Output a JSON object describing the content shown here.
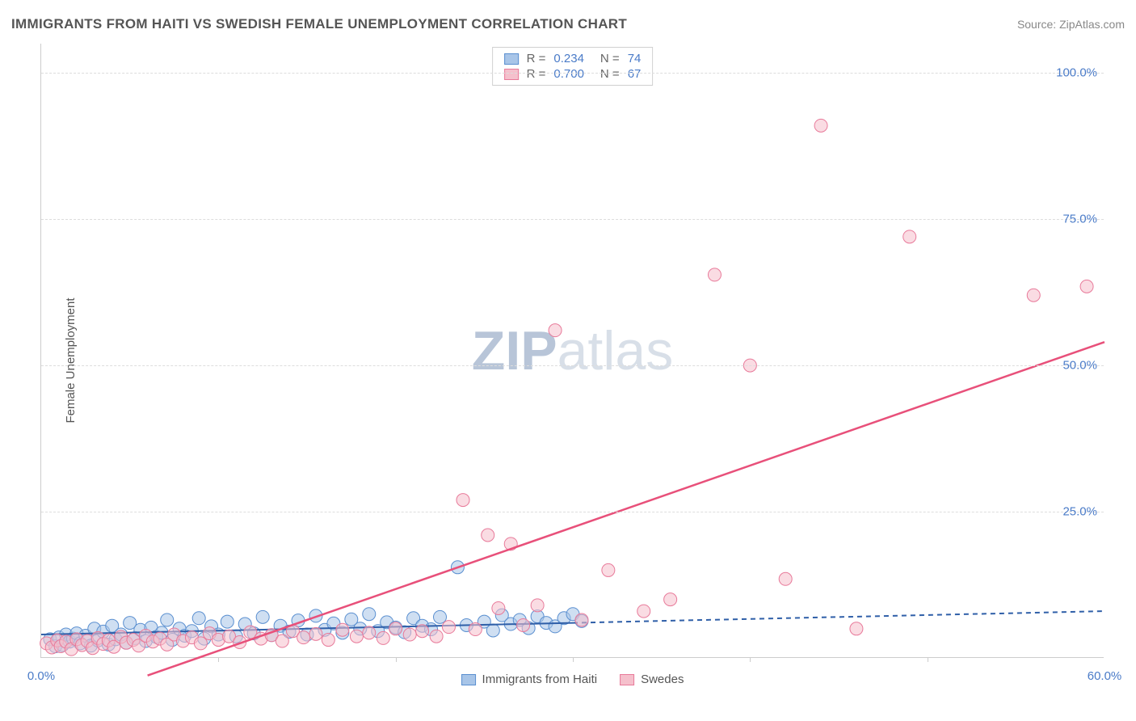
{
  "title": "IMMIGRANTS FROM HAITI VS SWEDISH FEMALE UNEMPLOYMENT CORRELATION CHART",
  "source": "Source: ZipAtlas.com",
  "ylabel": "Female Unemployment",
  "watermark_zip": "ZIP",
  "watermark_rest": "atlas",
  "chart": {
    "type": "scatter",
    "xlim": [
      0,
      60
    ],
    "ylim": [
      0,
      105
    ],
    "xtick_major": [
      0,
      60
    ],
    "xtick_minor": [
      10,
      20,
      30,
      40,
      50
    ],
    "xtick_labels": [
      "0.0%",
      "60.0%"
    ],
    "ytick_major": [
      25,
      50,
      75,
      100
    ],
    "ytick_labels": [
      "25.0%",
      "50.0%",
      "75.0%",
      "100.0%"
    ],
    "background_color": "#ffffff",
    "grid_color": "#dddddd",
    "axis_color": "#cccccc",
    "marker_radius": 8,
    "marker_opacity": 0.55,
    "series": [
      {
        "name": "Immigrants from Haiti",
        "color_fill": "#a8c5e8",
        "color_stroke": "#5a8fd0",
        "R": "0.234",
        "N": "74",
        "trend": {
          "x1": 0,
          "y1": 4.0,
          "x2": 30,
          "y2": 6.0,
          "x1_ext": 30,
          "x2_ext": 60,
          "y2_ext": 8.0,
          "dash_ext": true,
          "color": "#2f5fa8",
          "width": 2
        },
        "points": [
          [
            0.5,
            3.2
          ],
          [
            0.8,
            2.0
          ],
          [
            1.0,
            3.5
          ],
          [
            1.2,
            2.2
          ],
          [
            1.4,
            4.0
          ],
          [
            1.6,
            2.8
          ],
          [
            1.8,
            3.3
          ],
          [
            2.0,
            4.2
          ],
          [
            2.2,
            2.5
          ],
          [
            2.5,
            3.8
          ],
          [
            2.8,
            2.1
          ],
          [
            3.0,
            5.0
          ],
          [
            3.2,
            3.0
          ],
          [
            3.5,
            4.5
          ],
          [
            3.8,
            2.3
          ],
          [
            4.0,
            5.5
          ],
          [
            4.2,
            3.2
          ],
          [
            4.5,
            4.0
          ],
          [
            4.8,
            2.6
          ],
          [
            5.0,
            6.0
          ],
          [
            5.3,
            3.4
          ],
          [
            5.6,
            4.8
          ],
          [
            5.9,
            2.9
          ],
          [
            6.2,
            5.2
          ],
          [
            6.5,
            3.6
          ],
          [
            6.8,
            4.3
          ],
          [
            7.1,
            6.5
          ],
          [
            7.4,
            3.1
          ],
          [
            7.8,
            5.0
          ],
          [
            8.1,
            3.8
          ],
          [
            8.5,
            4.6
          ],
          [
            8.9,
            6.8
          ],
          [
            9.2,
            3.3
          ],
          [
            9.6,
            5.4
          ],
          [
            10.0,
            4.0
          ],
          [
            10.5,
            6.2
          ],
          [
            11.0,
            3.7
          ],
          [
            11.5,
            5.8
          ],
          [
            12.0,
            4.2
          ],
          [
            12.5,
            7.0
          ],
          [
            13.0,
            3.9
          ],
          [
            13.5,
            5.5
          ],
          [
            14.0,
            4.5
          ],
          [
            14.5,
            6.4
          ],
          [
            15.0,
            4.0
          ],
          [
            15.5,
            7.2
          ],
          [
            16.0,
            4.8
          ],
          [
            16.5,
            5.9
          ],
          [
            17.0,
            4.3
          ],
          [
            17.5,
            6.6
          ],
          [
            18.0,
            5.0
          ],
          [
            18.5,
            7.5
          ],
          [
            19.0,
            4.6
          ],
          [
            19.5,
            6.1
          ],
          [
            20.0,
            5.2
          ],
          [
            20.5,
            4.4
          ],
          [
            21.0,
            6.8
          ],
          [
            21.5,
            5.5
          ],
          [
            22.0,
            4.9
          ],
          [
            22.5,
            7.0
          ],
          [
            23.5,
            15.5
          ],
          [
            24.0,
            5.6
          ],
          [
            25.0,
            6.2
          ],
          [
            25.5,
            4.7
          ],
          [
            26.0,
            7.3
          ],
          [
            26.5,
            5.8
          ],
          [
            27.0,
            6.5
          ],
          [
            27.5,
            5.1
          ],
          [
            28.0,
            7.1
          ],
          [
            28.5,
            6.0
          ],
          [
            29.0,
            5.4
          ],
          [
            29.5,
            6.8
          ],
          [
            30.0,
            7.5
          ],
          [
            30.5,
            6.3
          ]
        ]
      },
      {
        "name": "Swedes",
        "color_fill": "#f5c0cc",
        "color_stroke": "#e87a9a",
        "R": "0.700",
        "N": "67",
        "trend": {
          "x1": 6,
          "y1": -3,
          "x2": 60,
          "y2": 54,
          "color": "#e8507a",
          "width": 2.5
        },
        "points": [
          [
            0.3,
            2.5
          ],
          [
            0.6,
            1.8
          ],
          [
            0.9,
            3.0
          ],
          [
            1.1,
            2.0
          ],
          [
            1.4,
            2.8
          ],
          [
            1.7,
            1.5
          ],
          [
            2.0,
            3.2
          ],
          [
            2.3,
            2.2
          ],
          [
            2.6,
            2.9
          ],
          [
            2.9,
            1.7
          ],
          [
            3.2,
            3.4
          ],
          [
            3.5,
            2.4
          ],
          [
            3.8,
            3.0
          ],
          [
            4.1,
            1.9
          ],
          [
            4.5,
            3.6
          ],
          [
            4.8,
            2.6
          ],
          [
            5.2,
            3.1
          ],
          [
            5.5,
            2.1
          ],
          [
            5.9,
            3.8
          ],
          [
            6.3,
            2.8
          ],
          [
            6.7,
            3.3
          ],
          [
            7.1,
            2.3
          ],
          [
            7.5,
            4.0
          ],
          [
            8.0,
            2.9
          ],
          [
            8.5,
            3.5
          ],
          [
            9.0,
            2.5
          ],
          [
            9.5,
            4.2
          ],
          [
            10.0,
            3.1
          ],
          [
            10.6,
            3.7
          ],
          [
            11.2,
            2.7
          ],
          [
            11.8,
            4.4
          ],
          [
            12.4,
            3.3
          ],
          [
            13.0,
            3.9
          ],
          [
            13.6,
            2.9
          ],
          [
            14.2,
            4.6
          ],
          [
            14.8,
            3.5
          ],
          [
            15.5,
            4.1
          ],
          [
            16.2,
            3.1
          ],
          [
            17.0,
            4.8
          ],
          [
            17.8,
            3.7
          ],
          [
            18.5,
            4.3
          ],
          [
            19.3,
            3.4
          ],
          [
            20.0,
            5.0
          ],
          [
            20.8,
            4.0
          ],
          [
            21.5,
            4.6
          ],
          [
            22.3,
            3.7
          ],
          [
            23.0,
            5.3
          ],
          [
            23.8,
            27.0
          ],
          [
            24.5,
            4.9
          ],
          [
            25.2,
            21.0
          ],
          [
            25.8,
            8.5
          ],
          [
            26.5,
            19.5
          ],
          [
            27.2,
            5.6
          ],
          [
            28.0,
            9.0
          ],
          [
            29.0,
            56.0
          ],
          [
            30.5,
            6.5
          ],
          [
            32.0,
            15.0
          ],
          [
            34.0,
            8.0
          ],
          [
            35.5,
            10.0
          ],
          [
            38.0,
            65.5
          ],
          [
            40.0,
            50.0
          ],
          [
            42.0,
            13.5
          ],
          [
            44.0,
            91.0
          ],
          [
            46.0,
            5.0
          ],
          [
            49.0,
            72.0
          ],
          [
            56.0,
            62.0
          ],
          [
            59.0,
            63.5
          ]
        ]
      }
    ]
  },
  "legend_stats": [
    {
      "swatch_fill": "#a8c5e8",
      "swatch_stroke": "#5a8fd0",
      "R_label": "R =",
      "R": "0.234",
      "N_label": "N =",
      "N": "74"
    },
    {
      "swatch_fill": "#f5c0cc",
      "swatch_stroke": "#e87a9a",
      "R_label": "R =",
      "R": "0.700",
      "N_label": "N =",
      "N": "67"
    }
  ],
  "legend_bottom": [
    {
      "swatch_fill": "#a8c5e8",
      "swatch_stroke": "#5a8fd0",
      "label": "Immigrants from Haiti"
    },
    {
      "swatch_fill": "#f5c0cc",
      "swatch_stroke": "#e87a9a",
      "label": "Swedes"
    }
  ]
}
